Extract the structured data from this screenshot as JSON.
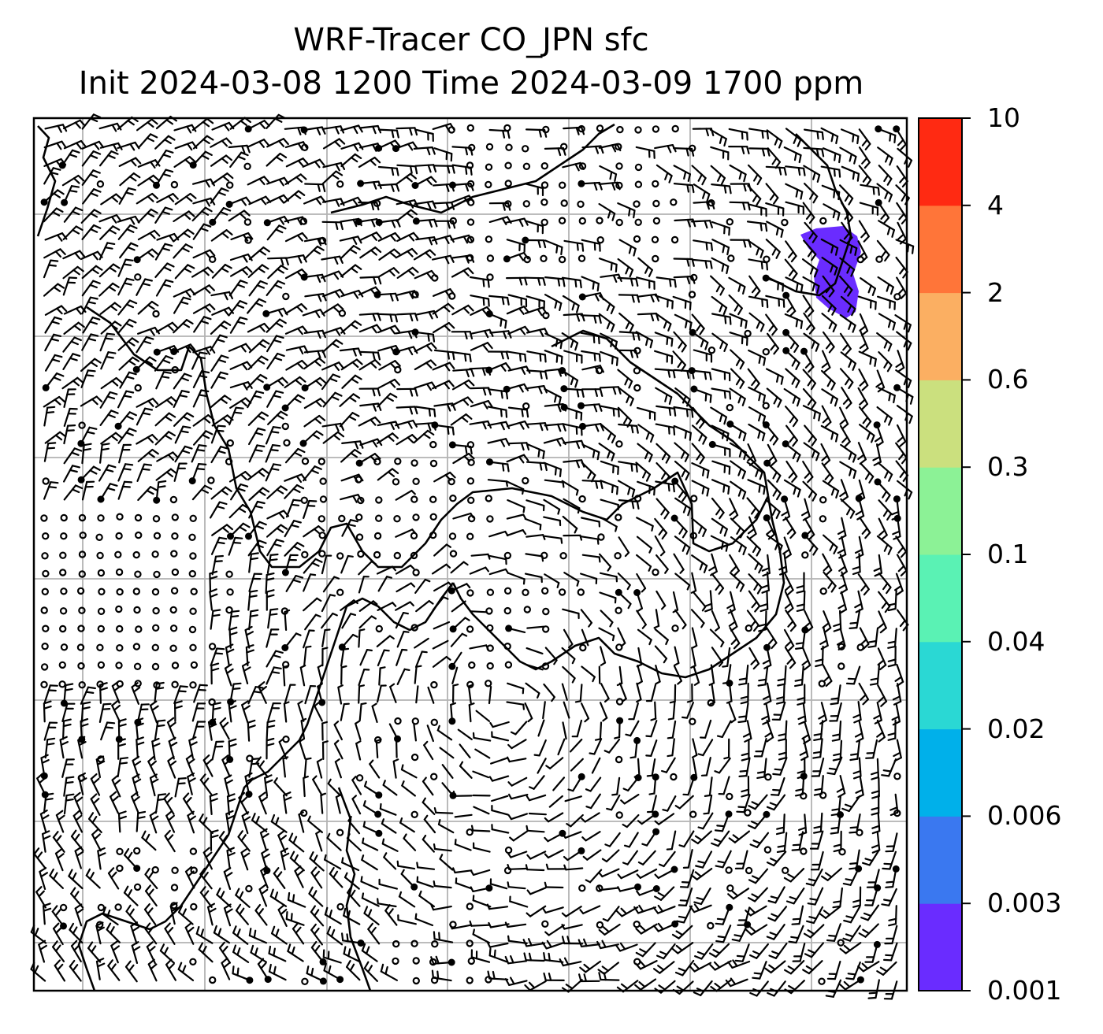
{
  "title": {
    "line1": "WRF-Tracer CO_JPN sfc",
    "line2": "Init 2024-03-08 1200 Time 2024-03-09 1700 ppm"
  },
  "colorbar": {
    "levels": [
      "0.001",
      "0.003",
      "0.006",
      "0.02",
      "0.04",
      "0.1",
      "0.3",
      "0.6",
      "2",
      "4",
      "10"
    ],
    "colors": [
      "#6a2cff",
      "#3a78f0",
      "#00b0ea",
      "#2ad8d4",
      "#5af2b4",
      "#8cf296",
      "#cbe07e",
      "#fbaf62",
      "#ff7539",
      "#ff2a12"
    ]
  },
  "map": {
    "tracer_plume_color": "#6a2cff",
    "tracer_plume_level": "0.001",
    "wind_barbs": true,
    "coastlines": true,
    "gridlines": true
  }
}
